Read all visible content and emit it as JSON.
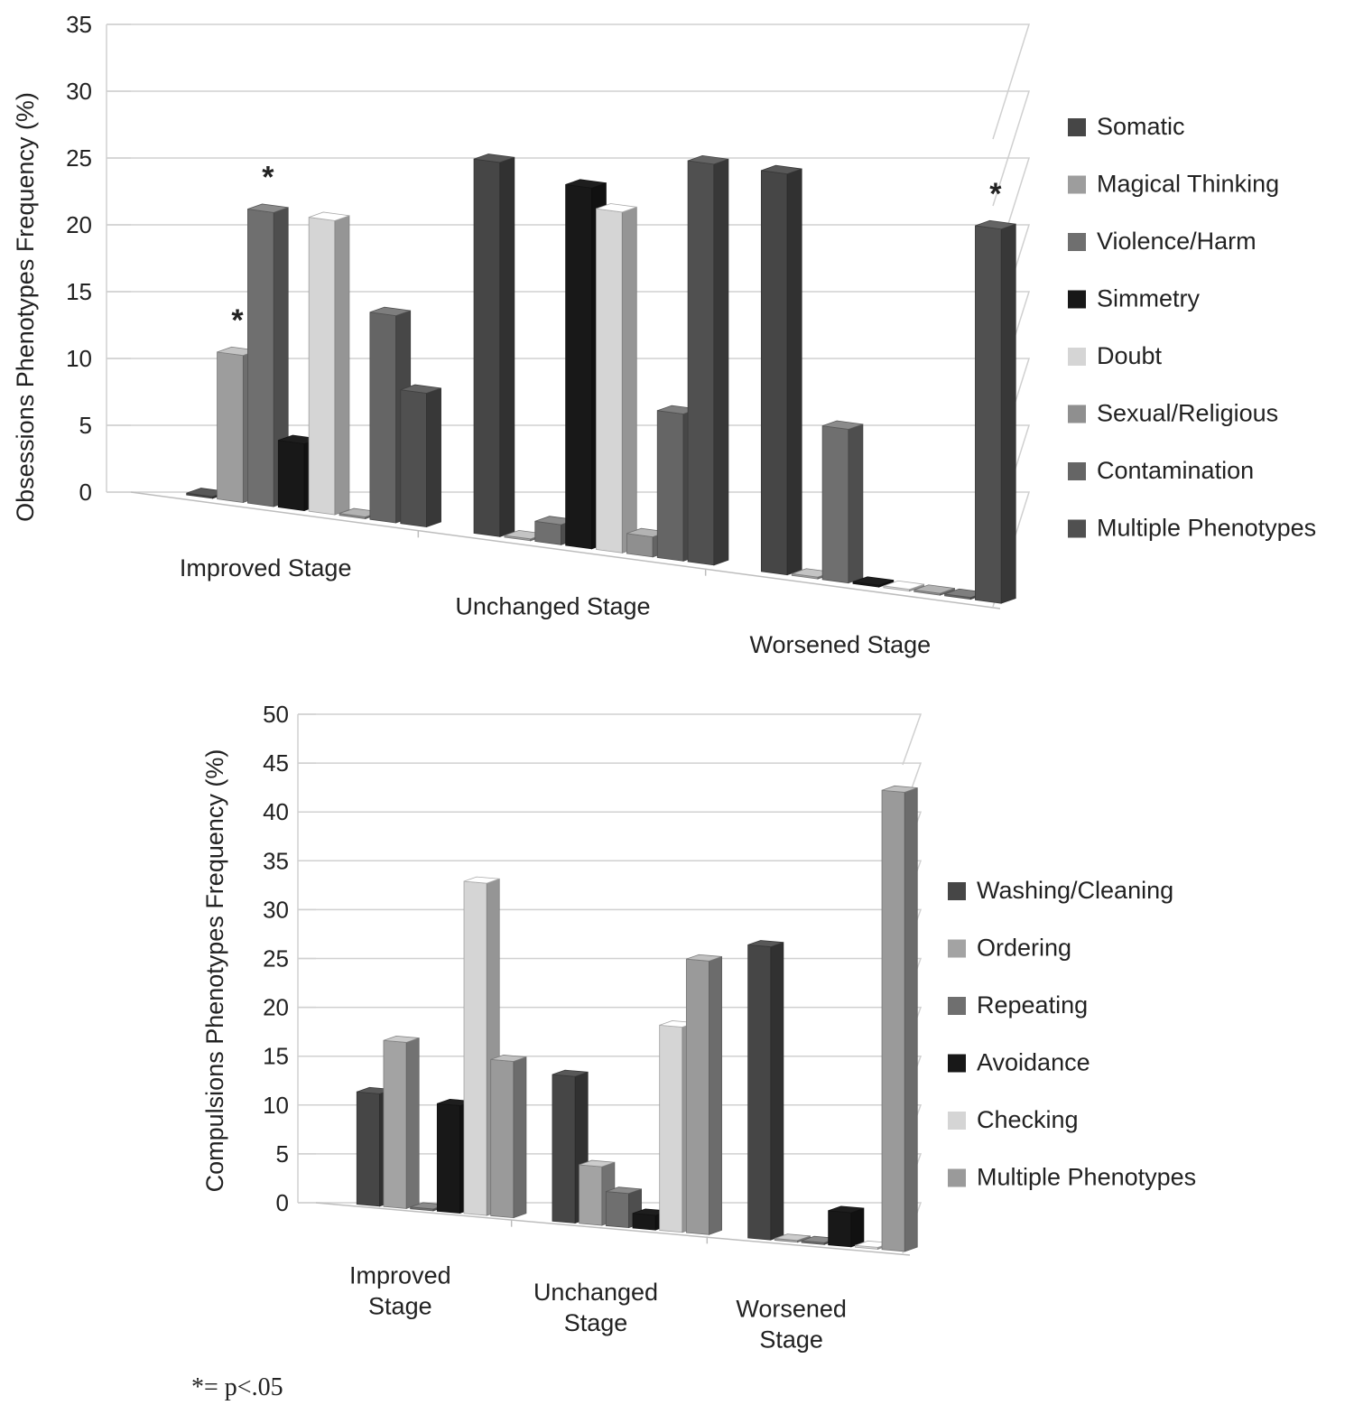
{
  "chart_data": [
    {
      "type": "bar",
      "style": "3d-clustered-column",
      "ylabel": "Obsessions Phenotypes Frequency (%)",
      "xlabel": "",
      "ylim": [
        0,
        35
      ],
      "yticks": [
        "0",
        "5",
        "10",
        "15",
        "20",
        "25",
        "30",
        "35"
      ],
      "categories": [
        "Improved Stage",
        "Unchanged Stage",
        "Worsened Stage"
      ],
      "legend_position": "right",
      "grid": true,
      "series": [
        {
          "name": "Somatic",
          "color": "#464646",
          "values": [
            0,
            28,
            30
          ]
        },
        {
          "name": "Magical Thinking",
          "color": "#9d9d9d",
          "values": [
            11,
            0,
            0
          ]
        },
        {
          "name": "Violence/Harm",
          "color": "#6f6f6f",
          "values": [
            22,
            1.5,
            11.5
          ]
        },
        {
          "name": "Simmetry",
          "color": "#181818",
          "values": [
            5,
            27,
            0
          ]
        },
        {
          "name": "Doubt",
          "color": "#d5d5d5",
          "values": [
            22,
            25.5,
            0
          ]
        },
        {
          "name": "Sexual/Religious",
          "color": "#8f8f8f",
          "values": [
            0,
            1.5,
            0
          ]
        },
        {
          "name": "Contamination",
          "color": "#656565",
          "values": [
            15.5,
            11,
            0
          ]
        },
        {
          "name": "Multiple Phenotypes",
          "color": "#505050",
          "values": [
            10,
            30,
            28
          ]
        }
      ],
      "annotations": [
        {
          "text": "*",
          "series": "Magical Thinking",
          "category": "Improved Stage"
        },
        {
          "text": "*",
          "series": "Violence/Harm",
          "category": "Improved Stage"
        },
        {
          "text": "*",
          "series": "Multiple Phenotypes",
          "category": "Worsened Stage"
        }
      ]
    },
    {
      "type": "bar",
      "style": "3d-clustered-column",
      "ylabel": "Compulsions Phenotypes Frequency (%)",
      "xlabel": "",
      "ylim": [
        0,
        50
      ],
      "yticks": [
        "0",
        "5",
        "10",
        "15",
        "20",
        "25",
        "30",
        "35",
        "40",
        "45",
        "50"
      ],
      "categories": [
        [
          "Improved",
          "Stage"
        ],
        [
          "Unchanged",
          "Stage"
        ],
        [
          "Worsened",
          "Stage"
        ]
      ],
      "legend_position": "right",
      "grid": true,
      "series": [
        {
          "name": "Washing/Cleaning",
          "color": "#464646",
          "values": [
            11.5,
            15,
            30
          ]
        },
        {
          "name": "Ordering",
          "color": "#a3a3a3",
          "values": [
            17,
            6,
            0
          ]
        },
        {
          "name": "Repeating",
          "color": "#6f6f6f",
          "values": [
            0,
            3.5,
            0
          ]
        },
        {
          "name": "Avoidance",
          "color": "#181818",
          "values": [
            11,
            1.5,
            3.5
          ]
        },
        {
          "name": "Checking",
          "color": "#d5d5d5",
          "values": [
            34,
            21,
            0
          ]
        },
        {
          "name": "Multiple Phenotypes",
          "color": "#9a9a9a",
          "values": [
            16,
            28,
            47
          ]
        }
      ]
    }
  ],
  "footnote": "*= p<.05"
}
